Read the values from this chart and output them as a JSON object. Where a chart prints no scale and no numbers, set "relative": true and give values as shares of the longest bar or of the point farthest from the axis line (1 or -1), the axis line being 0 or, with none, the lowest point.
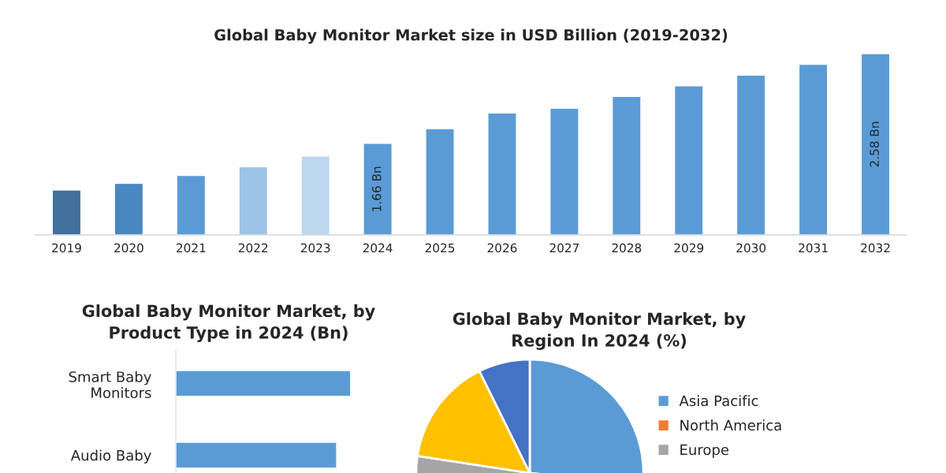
{
  "chart_data": [
    {
      "type": "bar",
      "title": "Global Baby Monitor Market size in USD Billion (2019-2032)",
      "ylim": [
        0.72,
        2.58
      ],
      "tick_labels": "x",
      "categories": [
        "2019",
        "2020",
        "2021",
        "2022",
        "2023",
        "2024",
        "2025",
        "2026",
        "2027",
        "2028",
        "2029",
        "2030",
        "2031",
        "2032"
      ],
      "values": [
        1.18,
        1.25,
        1.33,
        1.42,
        1.53,
        1.66,
        1.81,
        1.97,
        2.02,
        2.14,
        2.25,
        2.36,
        2.47,
        2.58
      ],
      "colors": [
        "#41719c",
        "#4a86c0",
        "#5b9bd5",
        "#9dc3e6",
        "#bdd7ee",
        "#5b9bd5",
        "#5b9bd5",
        "#5b9bd5",
        "#5b9bd5",
        "#5b9bd5",
        "#5b9bd5",
        "#5b9bd5",
        "#5b9bd5",
        "#5b9bd5"
      ],
      "value_labels": [
        null,
        null,
        null,
        null,
        null,
        "1.66 Bn",
        null,
        null,
        null,
        null,
        null,
        null,
        null,
        "2.58 Bn"
      ]
    },
    {
      "type": "bar",
      "orientation": "horizontal",
      "relative": true,
      "title": "Global Baby Monitor Market, by\nProduct Type in 2024 (Bn)",
      "categories": [
        "Smart Baby\nMonitors",
        "Audio Baby"
      ],
      "values": [
        1,
        0.92
      ],
      "color": "#5b9bd5"
    },
    {
      "type": "pie",
      "title": "Global Baby Monitor Market, by\nRegion In 2024 (%)",
      "legend": "right",
      "categories": [
        "Asia Pacific",
        "North America",
        "Europe",
        null,
        null
      ],
      "values": [
        26.7,
        28.7,
        22,
        15.3,
        7.3
      ],
      "colors": [
        "#5b9bd5",
        "#ed7d31",
        "#a5a5a5",
        "#ffc000",
        "#4472c4"
      ]
    }
  ]
}
